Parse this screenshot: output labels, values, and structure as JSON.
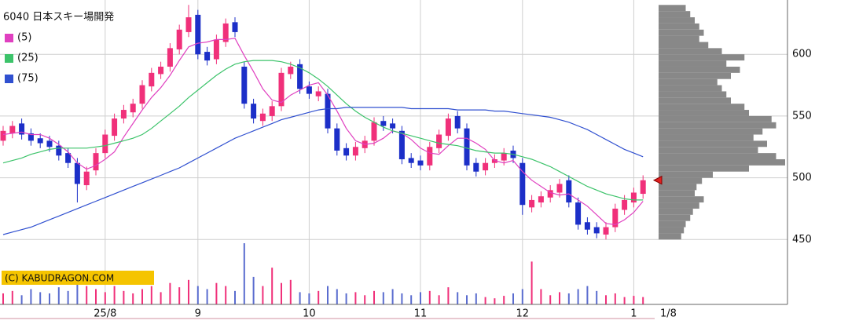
{
  "chart_data": {
    "type": "candlestick",
    "title": "6040 日本スキー場開発",
    "copyright": "(C) KABUDRAGON.COM",
    "categories": [
      null,
      null,
      null,
      null,
      null,
      null,
      null,
      null,
      null,
      null,
      null,
      "25/8",
      null,
      null,
      null,
      null,
      null,
      null,
      null,
      null,
      null,
      "9",
      null,
      null,
      null,
      null,
      null,
      null,
      null,
      null,
      null,
      null,
      null,
      "10",
      null,
      null,
      null,
      null,
      null,
      null,
      null,
      null,
      null,
      null,
      null,
      "11",
      null,
      null,
      null,
      null,
      null,
      null,
      null,
      null,
      null,
      null,
      "12",
      null,
      null,
      null,
      null,
      null,
      null,
      null,
      null,
      null,
      null,
      null,
      "1",
      null
    ],
    "latest_date": "1/8",
    "open": [
      530,
      536,
      544,
      536,
      532,
      530,
      526,
      520,
      512,
      494,
      506,
      520,
      534,
      548,
      553,
      560,
      574,
      584,
      590,
      604,
      618,
      632,
      602,
      596,
      610,
      626,
      590,
      560,
      546,
      550,
      558,
      584,
      592,
      574,
      566,
      568,
      540,
      524,
      518,
      524,
      530,
      546,
      544,
      538,
      516,
      514,
      510,
      524,
      534,
      550,
      540,
      512,
      506,
      512,
      514,
      522,
      512,
      476,
      480,
      484,
      488,
      498,
      480,
      464,
      460,
      454,
      460,
      474,
      480,
      487
    ],
    "high": [
      542,
      546,
      548,
      540,
      536,
      534,
      530,
      524,
      516,
      509,
      524,
      539,
      552,
      559,
      564,
      579,
      589,
      594,
      609,
      624,
      640,
      636,
      606,
      616,
      629,
      630,
      594,
      564,
      556,
      562,
      589,
      594,
      596,
      578,
      574,
      572,
      544,
      528,
      529,
      534,
      549,
      550,
      548,
      542,
      520,
      518,
      529,
      539,
      552,
      554,
      544,
      516,
      516,
      519,
      524,
      526,
      516,
      486,
      489,
      494,
      499,
      502,
      484,
      468,
      464,
      464,
      479,
      486,
      492,
      502
    ],
    "low": [
      526,
      532,
      531,
      526,
      524,
      521,
      514,
      508,
      480,
      490,
      502,
      516,
      530,
      544,
      549,
      556,
      570,
      580,
      586,
      600,
      614,
      596,
      591,
      592,
      606,
      614,
      556,
      544,
      542,
      546,
      554,
      580,
      568,
      564,
      562,
      536,
      518,
      514,
      514,
      520,
      526,
      538,
      536,
      511,
      508,
      506,
      506,
      520,
      530,
      536,
      506,
      501,
      502,
      508,
      510,
      512,
      470,
      472,
      476,
      480,
      484,
      476,
      458,
      454,
      451,
      450,
      456,
      470,
      476,
      483
    ],
    "close": [
      538,
      542,
      535,
      530,
      528,
      525,
      518,
      512,
      495,
      505,
      520,
      535,
      548,
      555,
      560,
      575,
      585,
      590,
      605,
      620,
      630,
      600,
      595,
      612,
      625,
      618,
      560,
      548,
      552,
      558,
      585,
      590,
      572,
      568,
      570,
      540,
      522,
      518,
      525,
      530,
      545,
      542,
      540,
      515,
      512,
      510,
      525,
      535,
      548,
      540,
      510,
      505,
      512,
      515,
      520,
      516,
      478,
      482,
      485,
      490,
      495,
      480,
      462,
      458,
      455,
      460,
      475,
      482,
      488,
      498
    ],
    "volume": [
      18,
      22,
      15,
      25,
      20,
      18,
      28,
      22,
      35,
      30,
      25,
      20,
      30,
      22,
      18,
      25,
      30,
      20,
      35,
      28,
      40,
      30,
      25,
      35,
      30,
      22,
      100,
      45,
      30,
      60,
      35,
      40,
      20,
      18,
      22,
      30,
      25,
      18,
      20,
      15,
      22,
      20,
      25,
      18,
      15,
      20,
      22,
      15,
      28,
      20,
      15,
      18,
      12,
      10,
      14,
      18,
      25,
      70,
      25,
      15,
      20,
      18,
      25,
      30,
      22,
      15,
      18,
      12,
      14,
      12
    ],
    "up_color": "#f0307a",
    "down_color": "#1c2fc8",
    "series": [
      {
        "name": "(5)",
        "color": "#e040c0",
        "values": [
          535,
          536,
          537,
          535,
          535,
          532,
          527,
          521,
          512,
          507,
          510,
          515,
          521,
          533,
          544,
          555,
          565,
          573,
          583,
          595,
          606,
          609,
          610,
          612,
          612,
          613,
          599,
          586,
          572,
          563,
          561,
          567,
          571,
          575,
          577,
          567,
          554,
          540,
          530,
          527,
          528,
          532,
          538,
          536,
          531,
          524,
          520,
          519,
          526,
          532,
          532,
          528,
          523,
          514,
          512,
          514,
          505,
          498,
          493,
          488,
          486,
          487,
          482,
          477,
          470,
          463,
          462,
          466,
          472,
          481
        ]
      },
      {
        "name": "(25)",
        "color": "#3cc36a",
        "values": [
          512,
          514,
          516,
          519,
          521,
          523,
          524,
          524,
          524,
          524,
          525,
          526,
          528,
          530,
          532,
          535,
          540,
          546,
          552,
          558,
          565,
          571,
          577,
          583,
          588,
          592,
          594,
          595,
          595,
          595,
          594,
          592,
          589,
          585,
          580,
          574,
          567,
          560,
          554,
          549,
          545,
          541,
          538,
          536,
          534,
          532,
          530,
          528,
          527,
          526,
          524,
          522,
          521,
          520,
          520,
          519,
          517,
          515,
          512,
          509,
          505,
          501,
          497,
          493,
          490,
          487,
          485,
          483,
          482,
          482
        ]
      },
      {
        "name": "(75)",
        "color": "#3050d0",
        "values": [
          454,
          456,
          458,
          460,
          463,
          466,
          469,
          472,
          475,
          478,
          481,
          484,
          487,
          490,
          493,
          496,
          499,
          502,
          505,
          508,
          512,
          516,
          520,
          524,
          528,
          532,
          535,
          538,
          541,
          544,
          547,
          549,
          551,
          553,
          555,
          556,
          556,
          557,
          557,
          557,
          557,
          557,
          557,
          557,
          556,
          556,
          556,
          556,
          556,
          555,
          555,
          555,
          555,
          554,
          554,
          553,
          552,
          551,
          550,
          549,
          547,
          545,
          542,
          539,
          535,
          531,
          527,
          523,
          520,
          517
        ]
      }
    ],
    "ylim": [
      447,
      644
    ],
    "yticks": [
      450,
      500,
      550,
      600
    ],
    "volume_ylim": [
      0,
      100
    ],
    "grid": true,
    "profile": {
      "color": "#888888",
      "bins": [
        450,
        455,
        460,
        465,
        470,
        475,
        480,
        485,
        490,
        495,
        500,
        505,
        510,
        515,
        520,
        525,
        530,
        535,
        540,
        545,
        550,
        555,
        560,
        565,
        570,
        575,
        580,
        585,
        590,
        595,
        600,
        605,
        610,
        615,
        620,
        625,
        630,
        635,
        640
      ],
      "values": [
        25,
        28,
        30,
        35,
        38,
        45,
        50,
        40,
        42,
        48,
        60,
        100,
        140,
        130,
        110,
        120,
        105,
        115,
        130,
        125,
        100,
        95,
        80,
        75,
        70,
        65,
        80,
        90,
        75,
        95,
        70,
        55,
        45,
        50,
        45,
        40,
        35,
        30
      ]
    }
  }
}
